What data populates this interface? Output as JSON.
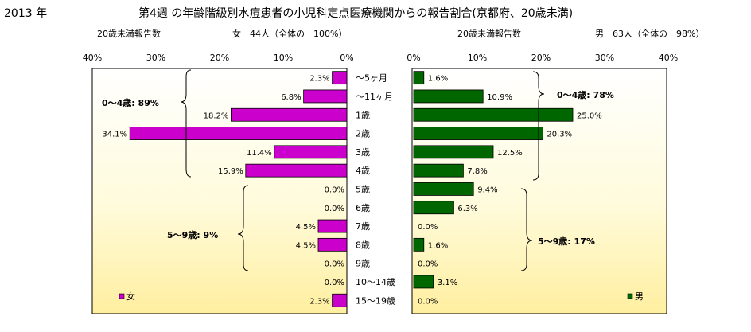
{
  "header": {
    "year": "2013 年",
    "title": "第4週 の年齢階級別水痘患者の小児科定点医療機関からの報告割合(京都府、20歳未満)"
  },
  "left": {
    "count_label": "20歳未満報告数",
    "summary": "女　44人（全体の　100%）",
    "legend": "女",
    "group_labels": [
      "0〜4歳: 89%",
      "5〜9歳:  9%"
    ],
    "bar_color": "#cc00cc"
  },
  "right": {
    "count_label": "20歳未満報告数",
    "summary": "男　63人（全体の　98%）",
    "legend": "男",
    "group_labels": [
      "0〜4歳: 78%",
      "5〜9歳: 17%"
    ],
    "bar_color": "#006600"
  },
  "chart_data": {
    "type": "bar",
    "orientation": "horizontal",
    "layout": "butterfly",
    "categories": [
      "〜5ヶ月",
      "〜11ヶ月",
      "1歳",
      "2歳",
      "3歳",
      "4歳",
      "5歳",
      "6歳",
      "7歳",
      "8歳",
      "9歳",
      "10〜14歳",
      "15〜19歳"
    ],
    "series": [
      {
        "name": "女",
        "values": [
          2.3,
          6.8,
          18.2,
          34.1,
          11.4,
          15.9,
          0.0,
          0.0,
          4.5,
          4.5,
          0.0,
          0.0,
          2.3
        ],
        "color": "#cc00cc"
      },
      {
        "name": "男",
        "values": [
          1.6,
          10.9,
          25.0,
          20.3,
          12.5,
          7.8,
          9.4,
          6.3,
          0.0,
          1.6,
          0.0,
          3.1,
          0.0
        ],
        "color": "#006600"
      }
    ],
    "value_labels_left": [
      "2.3%",
      "6.8%",
      "18.2%",
      "34.1%",
      "11.4%",
      "15.9%",
      "0.0%",
      "0.0%",
      "4.5%",
      "4.5%",
      "0.0%",
      "0.0%",
      "2.3%"
    ],
    "value_labels_right": [
      "1.6%",
      "10.9%",
      "25.0%",
      "20.3%",
      "12.5%",
      "7.8%",
      "9.4%",
      "6.3%",
      "0.0%",
      "1.6%",
      "0.0%",
      "3.1%",
      "0.0%"
    ],
    "xlim": [
      0,
      40
    ],
    "ticks": [
      0,
      10,
      20,
      30,
      40
    ],
    "tick_labels_left": [
      "40%",
      "30%",
      "20%",
      "10%",
      "0%"
    ],
    "tick_labels_right": [
      "0%",
      "10%",
      "20%",
      "30%",
      "40%"
    ],
    "legend_position": "bottom-left",
    "grid": false
  }
}
